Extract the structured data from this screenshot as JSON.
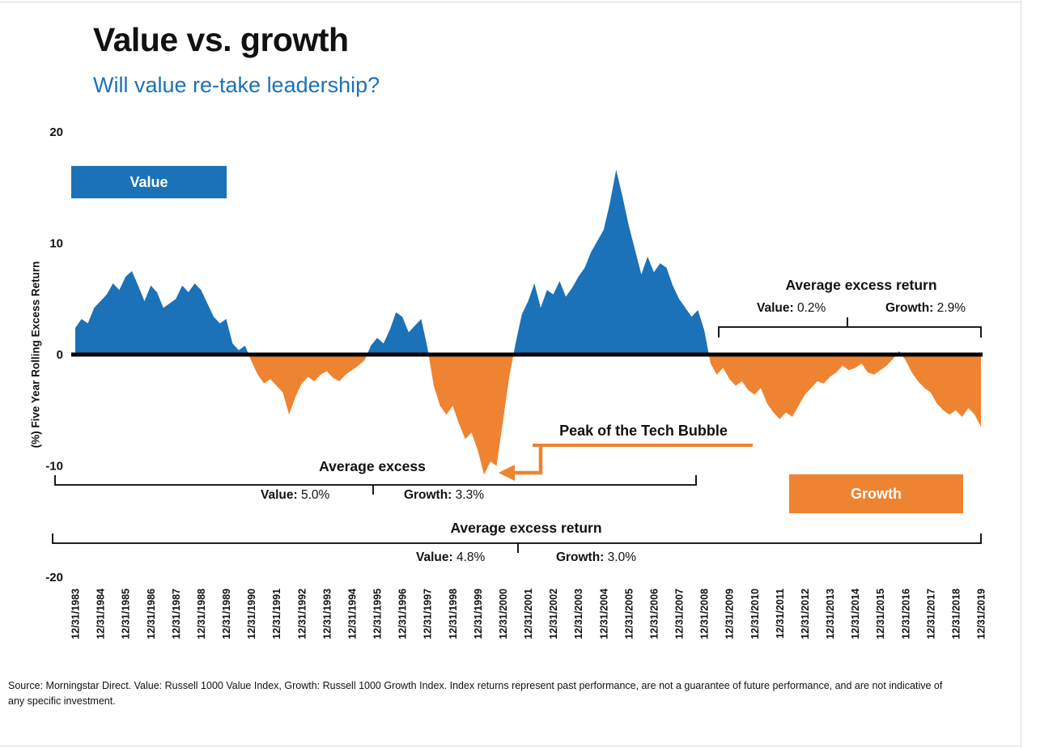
{
  "header": {
    "title": "Value vs. growth",
    "subtitle": "Will value re-take leadership?"
  },
  "colors": {
    "value_blue": "#1b72b8",
    "growth_orange": "#ee8331",
    "zero_line": "#000000"
  },
  "legend": {
    "value_label": "Value",
    "growth_label": "Growth"
  },
  "annotations": {
    "tech_bubble": "Peak of the Tech Bubble",
    "recent": {
      "title": "Average excess return",
      "value": {
        "label": "Value:",
        "pct": "0.2%"
      },
      "growth": {
        "label": "Growth:",
        "pct": "2.9%"
      }
    },
    "mid": {
      "title": "Average excess",
      "value": {
        "label": "Value:",
        "pct": "5.0%"
      },
      "growth": {
        "label": "Growth:",
        "pct": "3.3%"
      }
    },
    "overall": {
      "title": "Average excess return",
      "value": {
        "label": "Value:",
        "pct": "4.8%"
      },
      "growth": {
        "label": "Growth:",
        "pct": "3.0%"
      }
    }
  },
  "source": "Source: Morningstar Direct. Value: Russell 1000 Value Index, Growth: Russell 1000 Growth Index. Index returns represent past performance, are not a guarantee of future performance, and are not indicative of any specific investment.",
  "chart_data": {
    "type": "area",
    "title": "Value vs. growth — five year rolling excess return",
    "ylabel": "(%) Five Year Rolling Excess Return",
    "ylim": [
      -20,
      20
    ],
    "y_ticks": [
      20,
      10,
      0,
      -10,
      -20
    ],
    "grid": false,
    "x_points_per_year": 4,
    "x_tick_labels": [
      "12/31/1983",
      "12/31/1984",
      "12/31/1985",
      "12/31/1986",
      "12/31/1987",
      "12/31/1988",
      "12/31/1989",
      "12/31/1990",
      "12/31/1991",
      "12/31/1992",
      "12/31/1993",
      "12/31/1994",
      "12/31/1995",
      "12/31/1996",
      "12/31/1997",
      "12/31/1998",
      "12/31/1999",
      "12/31/2000",
      "12/31/2001",
      "12/31/2002",
      "12/31/2003",
      "12/31/2004",
      "12/31/2005",
      "12/31/2006",
      "12/31/2007",
      "12/31/2008",
      "12/31/2009",
      "12/31/2010",
      "12/31/2011",
      "12/31/2012",
      "12/31/2013",
      "12/31/2014",
      "12/31/2015",
      "12/31/2016",
      "12/31/2017",
      "12/31/2018",
      "12/31/2019"
    ],
    "area_positive_color": "#1b72b8",
    "area_negative_color": "#ee8331",
    "positive_meaning": "Value outperforms (blue, above 0)",
    "negative_meaning": "Growth outperforms (orange, below 0)",
    "series": [
      {
        "name": "Value minus Growth 5-year rolling excess return (%)",
        "start_label": "12/31/1983",
        "step_years": 0.25,
        "values": [
          2.4,
          3.2,
          2.8,
          4.2,
          4.8,
          5.4,
          6.4,
          5.8,
          7.0,
          7.5,
          6.2,
          4.8,
          6.2,
          5.6,
          4.2,
          4.6,
          5.0,
          6.2,
          5.6,
          6.4,
          5.8,
          4.6,
          3.4,
          2.8,
          3.2,
          1.0,
          0.4,
          0.8,
          -0.6,
          -1.8,
          -2.6,
          -2.2,
          -2.8,
          -3.4,
          -5.4,
          -3.8,
          -2.6,
          -2.0,
          -2.4,
          -1.8,
          -1.5,
          -2.1,
          -2.4,
          -1.8,
          -1.4,
          -1.0,
          -0.5,
          0.8,
          1.5,
          1.0,
          2.2,
          3.8,
          3.4,
          2.0,
          2.6,
          3.2,
          0.6,
          -2.8,
          -4.6,
          -5.4,
          -4.6,
          -6.2,
          -7.6,
          -7.0,
          -8.6,
          -10.8,
          -9.6,
          -10.0,
          -6.0,
          -2.0,
          1.0,
          3.6,
          4.8,
          6.4,
          4.2,
          5.8,
          5.4,
          6.6,
          5.2,
          6.0,
          7.0,
          7.8,
          9.2,
          10.2,
          11.2,
          13.6,
          16.6,
          14.2,
          11.6,
          9.4,
          7.2,
          8.8,
          7.4,
          8.2,
          7.8,
          6.2,
          5.0,
          4.2,
          3.4,
          4.0,
          2.2,
          -0.8,
          -1.8,
          -1.2,
          -2.2,
          -2.8,
          -2.4,
          -3.2,
          -3.6,
          -3.0,
          -4.4,
          -5.2,
          -5.8,
          -5.2,
          -5.6,
          -4.6,
          -3.6,
          -3.0,
          -2.4,
          -2.6,
          -2.0,
          -1.6,
          -1.0,
          -1.4,
          -1.2,
          -0.8,
          -1.6,
          -1.8,
          -1.4,
          -1.0,
          -0.4,
          0.3,
          -0.5,
          -1.6,
          -2.4,
          -3.0,
          -3.4,
          -4.4,
          -5.0,
          -5.4,
          -5.0,
          -5.6,
          -4.8,
          -5.4,
          -6.5
        ]
      }
    ]
  }
}
